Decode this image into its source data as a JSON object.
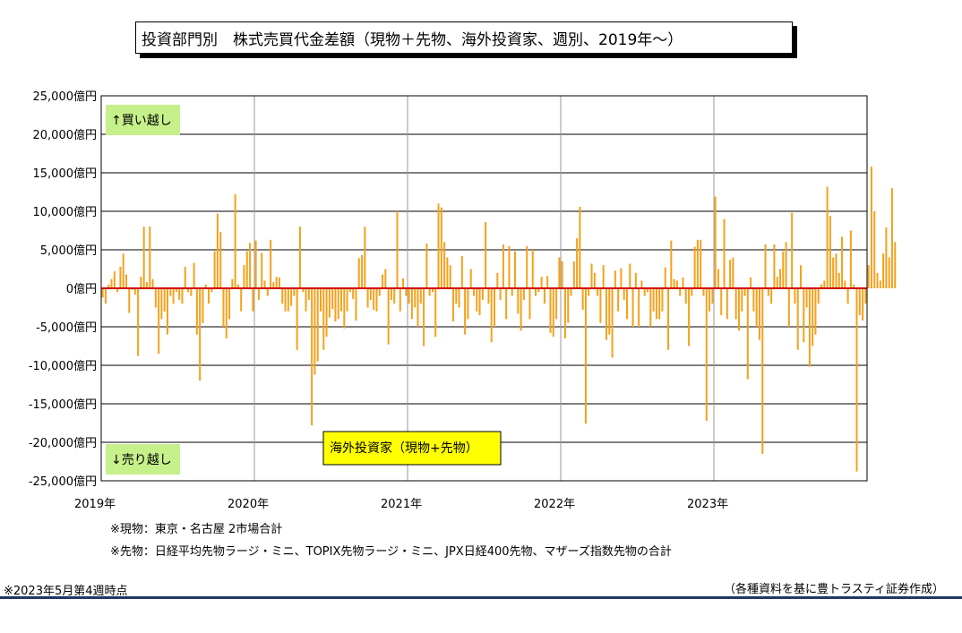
{
  "title": "投資部門別　株式売買代金差額（現物＋先物、海外投資家、週別、2019年～）",
  "colors": {
    "bar": "#f5a11c",
    "zero_line": "#d00000",
    "label_bg_green": "#c6f08a",
    "legend_bg": "#ffff00",
    "rule": "#1f3864"
  },
  "labels": {
    "buy": "↑買い越し",
    "sell": "↓売り越し",
    "series": "海外投資家（現物+先物）"
  },
  "notes": {
    "cash": "※現物：東京・名古屋 2市場合計",
    "futures": "※先物：日経平均先物ラージ・ミニ、TOPIX先物ラージ・ミニ、JPX日経400先物、マザーズ指数先物の合計",
    "asof": "※2023年5月第4週時点",
    "source": "（各種資料を基に豊トラスティ証券作成）"
  },
  "chart_data": {
    "type": "bar",
    "title": "投資部門別　株式売買代金差額（現物＋先物、海外投資家、週別、2019年～）",
    "xlabel": "",
    "ylabel": "",
    "ylim": [
      -25000,
      25000
    ],
    "y_ticks": [
      25000,
      20000,
      15000,
      10000,
      5000,
      0,
      -5000,
      -10000,
      -15000,
      -20000,
      -25000
    ],
    "y_tick_labels": [
      "25,000億円",
      "20,000億円",
      "15,000億円",
      "10,000億円",
      "5,000億円",
      "0億円",
      "-5,000億円",
      "-10,000億円",
      "-15,000億円",
      "-20,000億円",
      "-25,000億円"
    ],
    "x_ticks": [
      "2019年",
      "2020年",
      "2021年",
      "2022年",
      "2023年"
    ],
    "grid": true,
    "series": [
      {
        "name": "海外投資家（現物+先物）",
        "values": [
          -1200,
          -2000,
          500,
          1200,
          2200,
          -500,
          2800,
          4500,
          1800,
          -3200,
          -200,
          -800,
          -8800,
          1500,
          8000,
          800,
          8000,
          1200,
          -2500,
          -8500,
          -4000,
          -3000,
          -6000,
          -1000,
          -2000,
          -500,
          -1500,
          -2000,
          2800,
          -500,
          -1000,
          3300,
          -6000,
          -12000,
          -4500,
          500,
          -2000,
          -500,
          4800,
          9700,
          7300,
          -5000,
          -6500,
          -4000,
          1200,
          12200,
          500,
          -3000,
          3000,
          4800,
          5900,
          -3000,
          6200,
          -1500,
          4600,
          1000,
          -1000,
          6300,
          800,
          1500,
          1400,
          -2000,
          -3000,
          -3000,
          -2300,
          -1000,
          -8000,
          8000,
          -500,
          -3000,
          -1500,
          -17800,
          -11200,
          -9500,
          -3000,
          -8000,
          -6300,
          -3800,
          -2700,
          -4300,
          -4000,
          -3000,
          -5200,
          -3000,
          -500,
          -1400,
          -4200,
          3900,
          4300,
          8000,
          -2500,
          -1500,
          -2800,
          -3000,
          -1000,
          1800,
          2500,
          -7300,
          -1500,
          -2000,
          10000,
          -3000,
          1300,
          -1000,
          -2000,
          -4000,
          -2500,
          -5000,
          -2000,
          -7500,
          5800,
          -1000,
          -500,
          -6300,
          11000,
          10500,
          6000,
          4000,
          3000,
          -4300,
          -2000,
          -2500,
          4200,
          -6000,
          -4000,
          2500,
          -1000,
          -3000,
          -3500,
          -1500,
          8600,
          -2000,
          -7000,
          -5000,
          2000,
          -1500,
          5700,
          -4000,
          5500,
          -1000,
          4800,
          -3300,
          -5500,
          -1500,
          5500,
          -4000,
          5000,
          -1000,
          -500,
          1500,
          -2000,
          1600,
          -5800,
          -6300,
          -4000,
          4000,
          3500,
          -6500,
          -4500,
          -1000,
          3500,
          6500,
          10600,
          -2800,
          -17600,
          -1000,
          3200,
          2000,
          -1000,
          -4500,
          3000,
          -6700,
          -6000,
          -9000,
          2300,
          -3000,
          2600,
          -1500,
          -4000,
          3200,
          -5000,
          2000,
          -5000,
          1000,
          -1000,
          -500,
          -5000,
          -3000,
          -4000,
          -4000,
          -3000,
          2700,
          -8000,
          6200,
          1200,
          1000,
          -1000,
          1400,
          -2000,
          -7500,
          -1000,
          5400,
          6300,
          6300,
          -1000,
          -17200,
          -3000,
          -2000,
          11900,
          2500,
          -3500,
          9000,
          -4000,
          3700,
          4000,
          -4000,
          -5500,
          -3000,
          -1000,
          -11800,
          1400,
          -3000,
          -5000,
          -6700,
          -21500,
          5700,
          -1000,
          -2000,
          5700,
          1500,
          2500,
          4800,
          6000,
          -5000,
          9800,
          -2000,
          -8000,
          3000,
          -7000,
          -2500,
          -10200,
          -7500,
          -6000,
          -2000,
          500,
          1000,
          13200,
          9400,
          4000,
          4500,
          2000,
          6700,
          1000,
          -2000,
          7500,
          500,
          -23800,
          -3500,
          -4200,
          -2000,
          3000,
          15800,
          10000,
          2000,
          1000,
          4500,
          7900,
          4000,
          13000,
          6000
        ]
      }
    ]
  }
}
